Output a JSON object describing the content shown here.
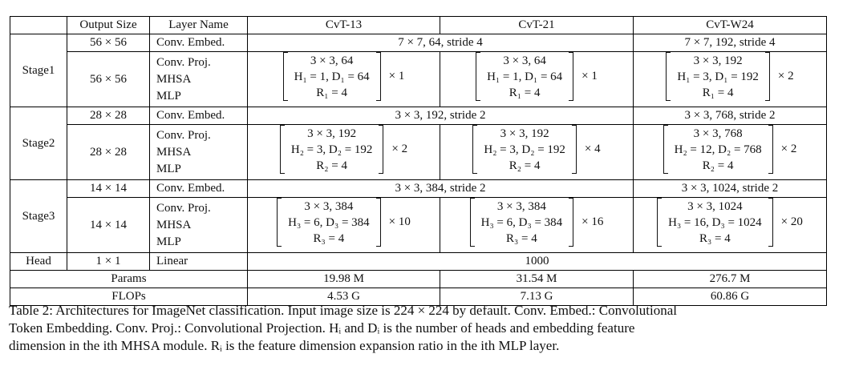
{
  "header": {
    "output_size": "Output Size",
    "layer_name": "Layer Name",
    "cvt13": "CvT-13",
    "cvt21": "CvT-21",
    "cvtw24": "CvT-W24"
  },
  "layer_names": {
    "conv_embed": "Conv. Embed.",
    "conv_proj": "Conv. Proj.",
    "mhsa": "MHSA",
    "mlp": "MLP",
    "linear": "Linear"
  },
  "stages": [
    {
      "name": "Stage1",
      "embed_size": "56 × 56",
      "block_size": "56 × 56",
      "embed_small": "7 × 7, 64, stride 4",
      "embed_wide": "7 × 7, 192, stride 4",
      "cvt13": {
        "proj": "3 × 3, 64",
        "mhsa": "H₁ = 1, D₁ = 64",
        "mlp": "R₁ = 4",
        "mult": "× 1"
      },
      "cvt21": {
        "proj": "3 × 3, 64",
        "mhsa": "H₁ = 1, D₁ = 64",
        "mlp": "R₁ = 4",
        "mult": "× 1"
      },
      "cvtw24": {
        "proj": "3 × 3, 192",
        "mhsa": "H₁ = 3, D₁ = 192",
        "mlp": "R₁ = 4",
        "mult": "× 2"
      }
    },
    {
      "name": "Stage2",
      "embed_size": "28 × 28",
      "block_size": "28 × 28",
      "embed_small": "3 × 3, 192, stride 2",
      "embed_wide": "3 × 3, 768, stride 2",
      "cvt13": {
        "proj": "3 × 3, 192",
        "mhsa": "H₂ = 3, D₂ = 192",
        "mlp": "R₂ = 4",
        "mult": "× 2"
      },
      "cvt21": {
        "proj": "3 × 3, 192",
        "mhsa": "H₂ = 3, D₂ = 192",
        "mlp": "R₂ = 4",
        "mult": "× 4"
      },
      "cvtw24": {
        "proj": "3 × 3, 768",
        "mhsa": "H₂ = 12, D₂ = 768",
        "mlp": "R₂ = 4",
        "mult": "× 2"
      }
    },
    {
      "name": "Stage3",
      "embed_size": "14 × 14",
      "block_size": "14 × 14",
      "embed_small": "3 × 3, 384, stride 2",
      "embed_wide": "3 × 3, 1024, stride 2",
      "cvt13": {
        "proj": "3 × 3, 384",
        "mhsa": "H₃ = 6, D₃ = 384",
        "mlp": "R₃ = 4",
        "mult": "× 10"
      },
      "cvt21": {
        "proj": "3 × 3, 384",
        "mhsa": "H₃ = 6, D₃ = 384",
        "mlp": "R₃ = 4",
        "mult": "× 16"
      },
      "cvtw24": {
        "proj": "3 × 3, 1024",
        "mhsa": "H₃ = 16, D₃ = 1024",
        "mlp": "R₃ = 4",
        "mult": "× 20"
      }
    }
  ],
  "head": {
    "name": "Head",
    "size": "1 × 1",
    "value": "1000"
  },
  "params": {
    "label": "Params",
    "cvt13": "19.98 M",
    "cvt21": "31.54 M",
    "cvtw24": "276.7 M"
  },
  "flops": {
    "label": "FLOPs",
    "cvt13": "4.53 G",
    "cvt21": "7.13 G",
    "cvtw24": "60.86 G"
  },
  "caption": {
    "line1": "Table 2: Architectures for ImageNet classification. Input image size is 224 × 224 by default. Conv. Embed.: Convolutional",
    "line2": "Token Embedding.  Conv. Proj.: Convolutional Projection.  Hᵢ and Dᵢ is the number of heads and embedding feature",
    "line3": "dimension in the ith MHSA module. Rᵢ is the feature dimension expansion ratio in the ith MLP layer."
  }
}
